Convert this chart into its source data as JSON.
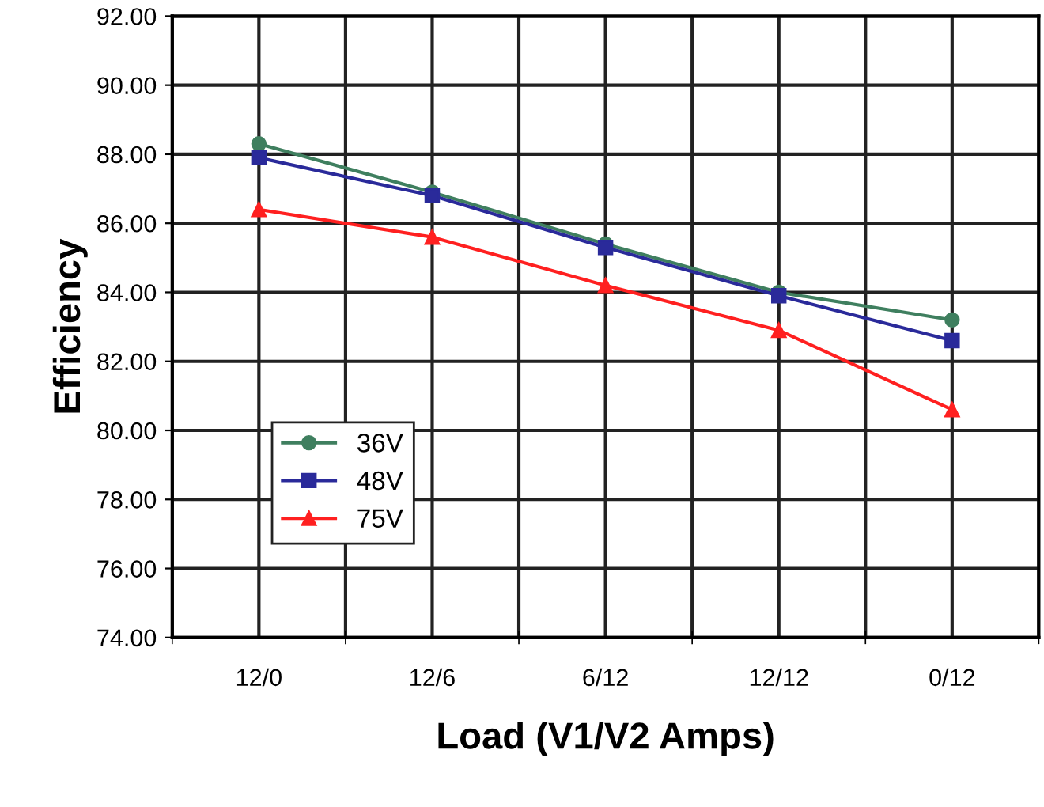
{
  "chart_data": {
    "type": "line",
    "xlabel": "Load (V1/V2 Amps)",
    "ylabel": "Efficiency",
    "categories": [
      "12/0",
      "12/6",
      "6/12",
      "12/12",
      "0/12"
    ],
    "series": [
      {
        "name": "36V",
        "color": "#3f7f5f",
        "marker": "circle",
        "values": [
          88.3,
          86.9,
          85.4,
          84.0,
          83.2
        ]
      },
      {
        "name": "48V",
        "color": "#2a2a9a",
        "marker": "square",
        "values": [
          87.9,
          86.8,
          85.3,
          83.9,
          82.6
        ]
      },
      {
        "name": "75V",
        "color": "#ff2020",
        "marker": "triangle",
        "values": [
          86.4,
          85.6,
          84.2,
          82.9,
          80.6
        ]
      }
    ],
    "ylim": [
      74,
      92
    ],
    "yticks": [
      {
        "value": 74,
        "label": "74.00"
      },
      {
        "value": 76,
        "label": "76.00"
      },
      {
        "value": 78,
        "label": "78.00"
      },
      {
        "value": 80,
        "label": "80.00"
      },
      {
        "value": 82,
        "label": "82.00"
      },
      {
        "value": 84,
        "label": "84.00"
      },
      {
        "value": 86,
        "label": "86.00"
      },
      {
        "value": 88,
        "label": "88.00"
      },
      {
        "value": 90,
        "label": "90.00"
      },
      {
        "value": 92,
        "label": "92.00"
      }
    ],
    "grid": true,
    "legend": "bottom left",
    "line_style": "solid"
  }
}
